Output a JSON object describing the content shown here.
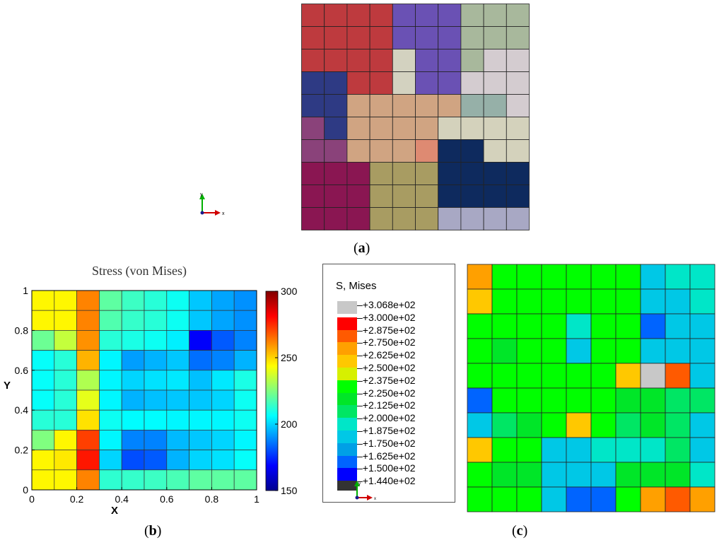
{
  "panel_a": {
    "caption_letter": "a",
    "axis_triad": {
      "x": "x",
      "y": "y"
    }
  },
  "panel_b": {
    "caption_letter": "b",
    "colorbar_colors": [
      "#00008f",
      "#0000ff",
      "#0080ff",
      "#00ffff",
      "#80ff80",
      "#ffff00",
      "#ff8000",
      "#ff0000",
      "#800000"
    ]
  },
  "panel_c": {
    "caption_letter": "c",
    "legend_title": "S, Mises",
    "legend_entries": [
      {
        "label": "+3.068e+02",
        "color": "#c8c8c8"
      },
      {
        "label": "+3.000e+02",
        "color": "#ff0000"
      },
      {
        "label": "+2.875e+02",
        "color": "#ff5a00"
      },
      {
        "label": "+2.750e+02",
        "color": "#ffa000"
      },
      {
        "label": "+2.625e+02",
        "color": "#ffc800"
      },
      {
        "label": "+2.500e+02",
        "color": "#d6f000"
      },
      {
        "label": "+2.375e+02",
        "color": "#00ff00"
      },
      {
        "label": "+2.250e+02",
        "color": "#00e628"
      },
      {
        "label": "+2.125e+02",
        "color": "#00e664"
      },
      {
        "label": "+2.000e+02",
        "color": "#00e6c8"
      },
      {
        "label": "+1.875e+02",
        "color": "#00c8e6"
      },
      {
        "label": "+1.750e+02",
        "color": "#00a0e6"
      },
      {
        "label": "+1.625e+02",
        "color": "#0064ff"
      },
      {
        "label": "+1.500e+02",
        "color": "#0000ff"
      },
      {
        "label": "+1.440e+02",
        "color": "#333333"
      }
    ],
    "axis_triad": {
      "x": "x",
      "y": "y"
    }
  },
  "chart_data": [
    {
      "type": "heatmap",
      "title": "",
      "description": "Grain/partition map (categorical colors), 10x10 grid, rows listed top to bottom",
      "rows": 10,
      "cols": 10,
      "values": [
        [
          "#be3a3e",
          "#be3a3e",
          "#be3a3e",
          "#be3a3e",
          "#6a51b4",
          "#6a51b4",
          "#6a51b4",
          "#a8b89c",
          "#a8b89c",
          "#a8b89c"
        ],
        [
          "#be3a3e",
          "#be3a3e",
          "#be3a3e",
          "#be3a3e",
          "#6a51b4",
          "#6a51b4",
          "#6a51b4",
          "#a8b89c",
          "#a8b89c",
          "#a8b89c"
        ],
        [
          "#be3a3e",
          "#be3a3e",
          "#be3a3e",
          "#be3a3e",
          "#d3d2c0",
          "#6a51b4",
          "#6a51b4",
          "#a8b89c",
          "#d4ccd0",
          "#d4ccd0"
        ],
        [
          "#2e3a84",
          "#2e3a84",
          "#be3a3e",
          "#be3a3e",
          "#d3d2c0",
          "#6a51b4",
          "#6a51b4",
          "#d4ccd0",
          "#d4ccd0",
          "#d4ccd0"
        ],
        [
          "#2e3a84",
          "#2e3a84",
          "#d0a482",
          "#d0a482",
          "#d0a482",
          "#d0a482",
          "#d0a482",
          "#96b0a8",
          "#96b0a8",
          "#d4ccd0"
        ],
        [
          "#8a427a",
          "#2e3a84",
          "#d0a482",
          "#d0a482",
          "#d0a482",
          "#d0a482",
          "#d4d2bc",
          "#d4d2bc",
          "#d4d2bc",
          "#d4d2bc"
        ],
        [
          "#8a427a",
          "#8a427a",
          "#d0a482",
          "#d0a482",
          "#d0a482",
          "#de8a72",
          "#0e2a5e",
          "#0e2a5e",
          "#d4d2bc",
          "#d4d2bc"
        ],
        [
          "#8a1652",
          "#8a1652",
          "#8a1652",
          "#a89c62",
          "#a89c62",
          "#a89c62",
          "#0e2a5e",
          "#0e2a5e",
          "#0e2a5e",
          "#0e2a5e"
        ],
        [
          "#8a1652",
          "#8a1652",
          "#8a1652",
          "#a89c62",
          "#a89c62",
          "#a89c62",
          "#0e2a5e",
          "#0e2a5e",
          "#0e2a5e",
          "#0e2a5e"
        ],
        [
          "#8a1652",
          "#8a1652",
          "#8a1652",
          "#a89c62",
          "#a89c62",
          "#a89c62",
          "#a8a8c4",
          "#a8a8c4",
          "#a8a8c4",
          "#a8a8c4"
        ]
      ]
    },
    {
      "type": "heatmap",
      "title": "Stress (von Mises)",
      "xlabel": "X",
      "ylabel": "Y",
      "xlim": [
        0,
        1
      ],
      "ylim": [
        0,
        1
      ],
      "x_ticks": [
        0,
        0.2,
        0.4,
        0.6,
        0.8,
        1
      ],
      "y_ticks": [
        0,
        0.2,
        0.4,
        0.6,
        0.8,
        1
      ],
      "colorbar_range": [
        150,
        300
      ],
      "colorbar_ticks": [
        150,
        200,
        250,
        300
      ],
      "rows": 10,
      "cols": 10,
      "values_top_to_bottom": [
        [
          245,
          245,
          262,
          220,
          215,
          212,
          208,
          198,
          193,
          190
        ],
        [
          245,
          245,
          262,
          218,
          214,
          212,
          208,
          198,
          193,
          190
        ],
        [
          222,
          235,
          260,
          212,
          210,
          208,
          204,
          168,
          182,
          188
        ],
        [
          207,
          212,
          255,
          205,
          192,
          195,
          198,
          185,
          188,
          195
        ],
        [
          207,
          212,
          232,
          205,
          200,
          202,
          203,
          197,
          203,
          210
        ],
        [
          207,
          212,
          240,
          205,
          195,
          197,
          198,
          198,
          200,
          208
        ],
        [
          212,
          212,
          248,
          208,
          206,
          206,
          205,
          205,
          205,
          208
        ],
        [
          225,
          245,
          272,
          205,
          188,
          188,
          196,
          198,
          200,
          205
        ],
        [
          245,
          247,
          278,
          200,
          180,
          182,
          195,
          200,
          202,
          207
        ],
        [
          245,
          245,
          262,
          213,
          214,
          215,
          217,
          220,
          220,
          220
        ]
      ]
    },
    {
      "type": "heatmap",
      "title": "S, Mises",
      "description": "FE contour result, 10x10 elements, rows listed top to bottom (values in legend units)",
      "rows": 10,
      "cols": 10,
      "values_top_to_bottom": [
        [
          270,
          237,
          237,
          237,
          237,
          237,
          237,
          182,
          198,
          198
        ],
        [
          250,
          237,
          237,
          237,
          237,
          237,
          237,
          182,
          182,
          198
        ],
        [
          237,
          237,
          237,
          237,
          198,
          237,
          237,
          162,
          182,
          182
        ],
        [
          237,
          220,
          237,
          237,
          182,
          237,
          237,
          182,
          182,
          182
        ],
        [
          237,
          237,
          237,
          237,
          237,
          237,
          250,
          300,
          287,
          182
        ],
        [
          162,
          237,
          237,
          237,
          237,
          237,
          220,
          220,
          205,
          205
        ],
        [
          182,
          205,
          215,
          237,
          250,
          237,
          205,
          220,
          205,
          182
        ],
        [
          250,
          237,
          237,
          182,
          182,
          198,
          198,
          198,
          205,
          182
        ],
        [
          237,
          220,
          220,
          182,
          182,
          182,
          220,
          220,
          220,
          198
        ],
        [
          237,
          237,
          237,
          182,
          162,
          162,
          237,
          270,
          287,
          270
        ]
      ]
    }
  ]
}
